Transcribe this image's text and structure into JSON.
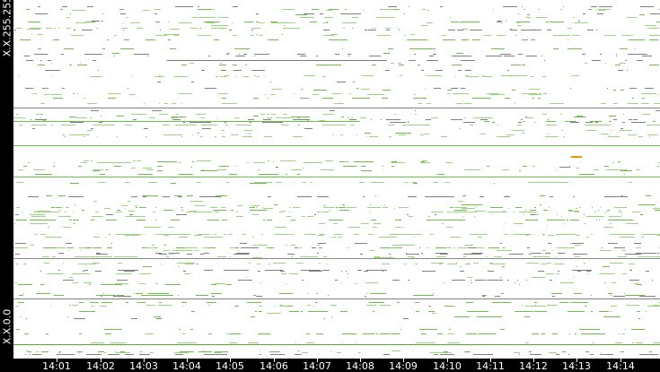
{
  "chart_data": {
    "type": "scatter",
    "ylabel_top": "X.X.255.255",
    "ylabel_bottom": "X.X.0.0",
    "x_range": [
      "14:00:00",
      "14:14:56"
    ],
    "x_ticks": [
      "14:01",
      "14:02",
      "14:03",
      "14:04",
      "14:05",
      "14:06",
      "14:07",
      "14:08",
      "14:09",
      "14:10",
      "14:11",
      "14:12",
      "14:13",
      "14:14"
    ],
    "colors": {
      "flow": "#6cc04a",
      "flow_light": "#9ad67f",
      "flow_gray": "#808080",
      "highlight": "#e89a00",
      "background": "#ffffff",
      "axis": "#000000"
    },
    "prominent_flows": [
      {
        "address": "X.X.213.30",
        "start": "14:03:32",
        "end": "14:08:37",
        "color": "#7a7a7a"
      },
      {
        "address": "X.X.179.51",
        "start": "14:00:00",
        "end": "14:14:56",
        "color": "#808080"
      },
      {
        "address": "X.X.169.153",
        "start": "14:00:00",
        "end": "14:08:00",
        "color": "#6cc04a"
      },
      {
        "address": "X.X.152.81",
        "start": "14:00:00",
        "end": "14:14:56",
        "color": "#6cc04a"
      },
      {
        "address": "X.X.144.163",
        "start": "14:12:52",
        "end": "14:13:07",
        "color": "#e89a00"
      },
      {
        "address": "X.X.129.235",
        "start": "14:00:00",
        "end": "14:14:56",
        "color": "#6cc04a"
      },
      {
        "address": "X.X.71.174",
        "start": "14:00:00",
        "end": "14:14:56",
        "color": "#8a8a8a"
      },
      {
        "address": "X.X.42.225",
        "start": "14:00:00",
        "end": "14:14:56",
        "color": "#808080"
      },
      {
        "address": "X.X.10.61",
        "start": "14:00:00",
        "end": "14:14:56",
        "color": "#5aaa30"
      }
    ]
  }
}
